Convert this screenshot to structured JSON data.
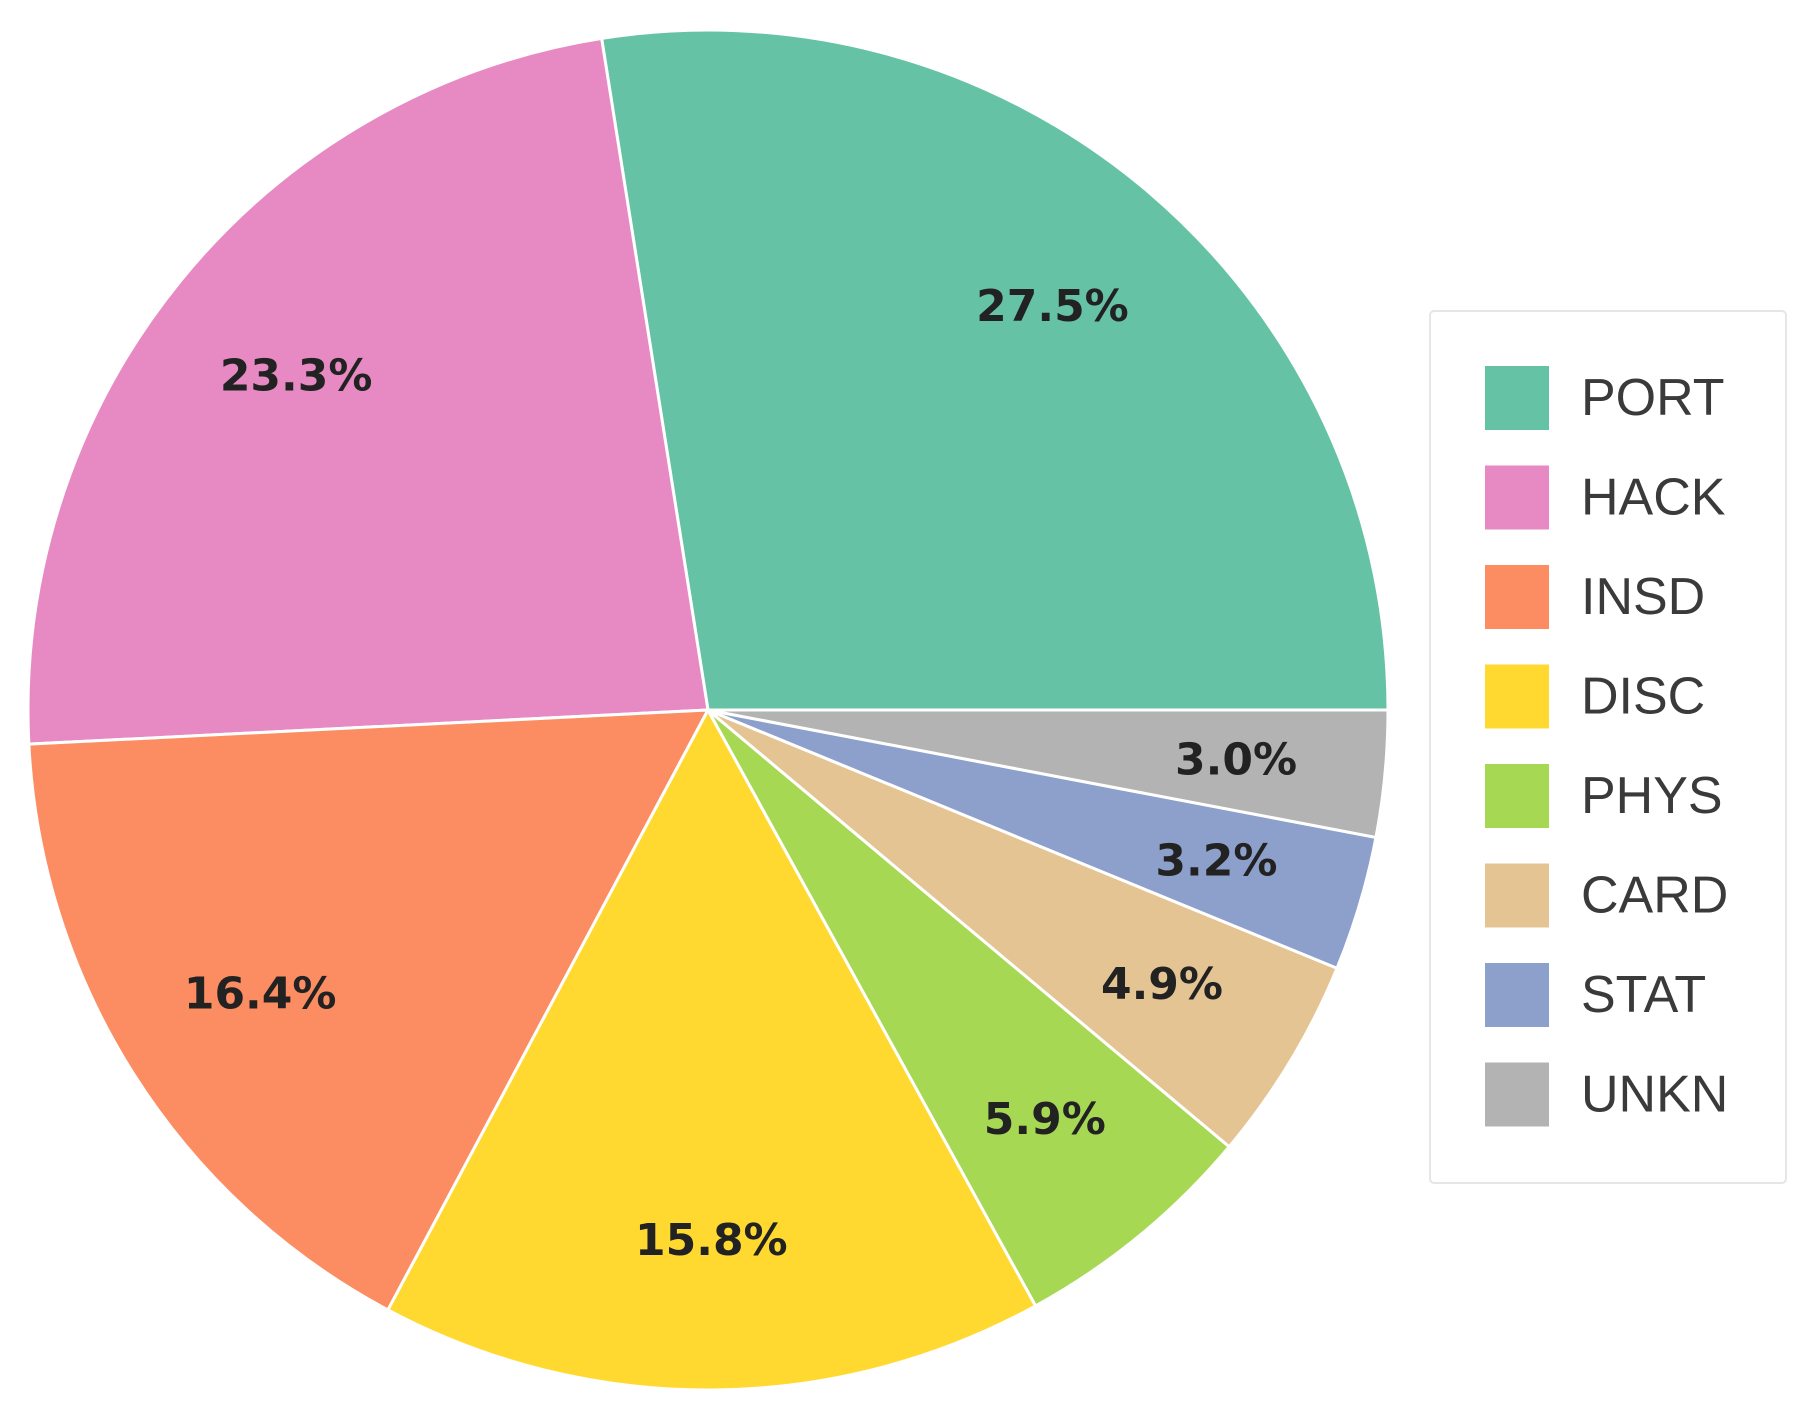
{
  "chart_data": {
    "type": "pie",
    "categories": [
      "PORT",
      "HACK",
      "INSD",
      "DISC",
      "PHYS",
      "CARD",
      "STAT",
      "UNKN"
    ],
    "values": [
      27.5,
      23.3,
      16.4,
      15.8,
      5.9,
      4.9,
      3.2,
      3.0
    ],
    "labels": [
      "27.5%",
      "23.3%",
      "16.4%",
      "15.8%",
      "5.9%",
      "4.9%",
      "3.2%",
      "3.0%"
    ],
    "colors": [
      "#66c2a5",
      "#e78ac3",
      "#fc8d62",
      "#ffd92f",
      "#a6d854",
      "#e5c494",
      "#8da0cb",
      "#b3b3b3"
    ],
    "start_angle_deg": 0,
    "direction": "counterclockwise",
    "legend_position": "right"
  }
}
